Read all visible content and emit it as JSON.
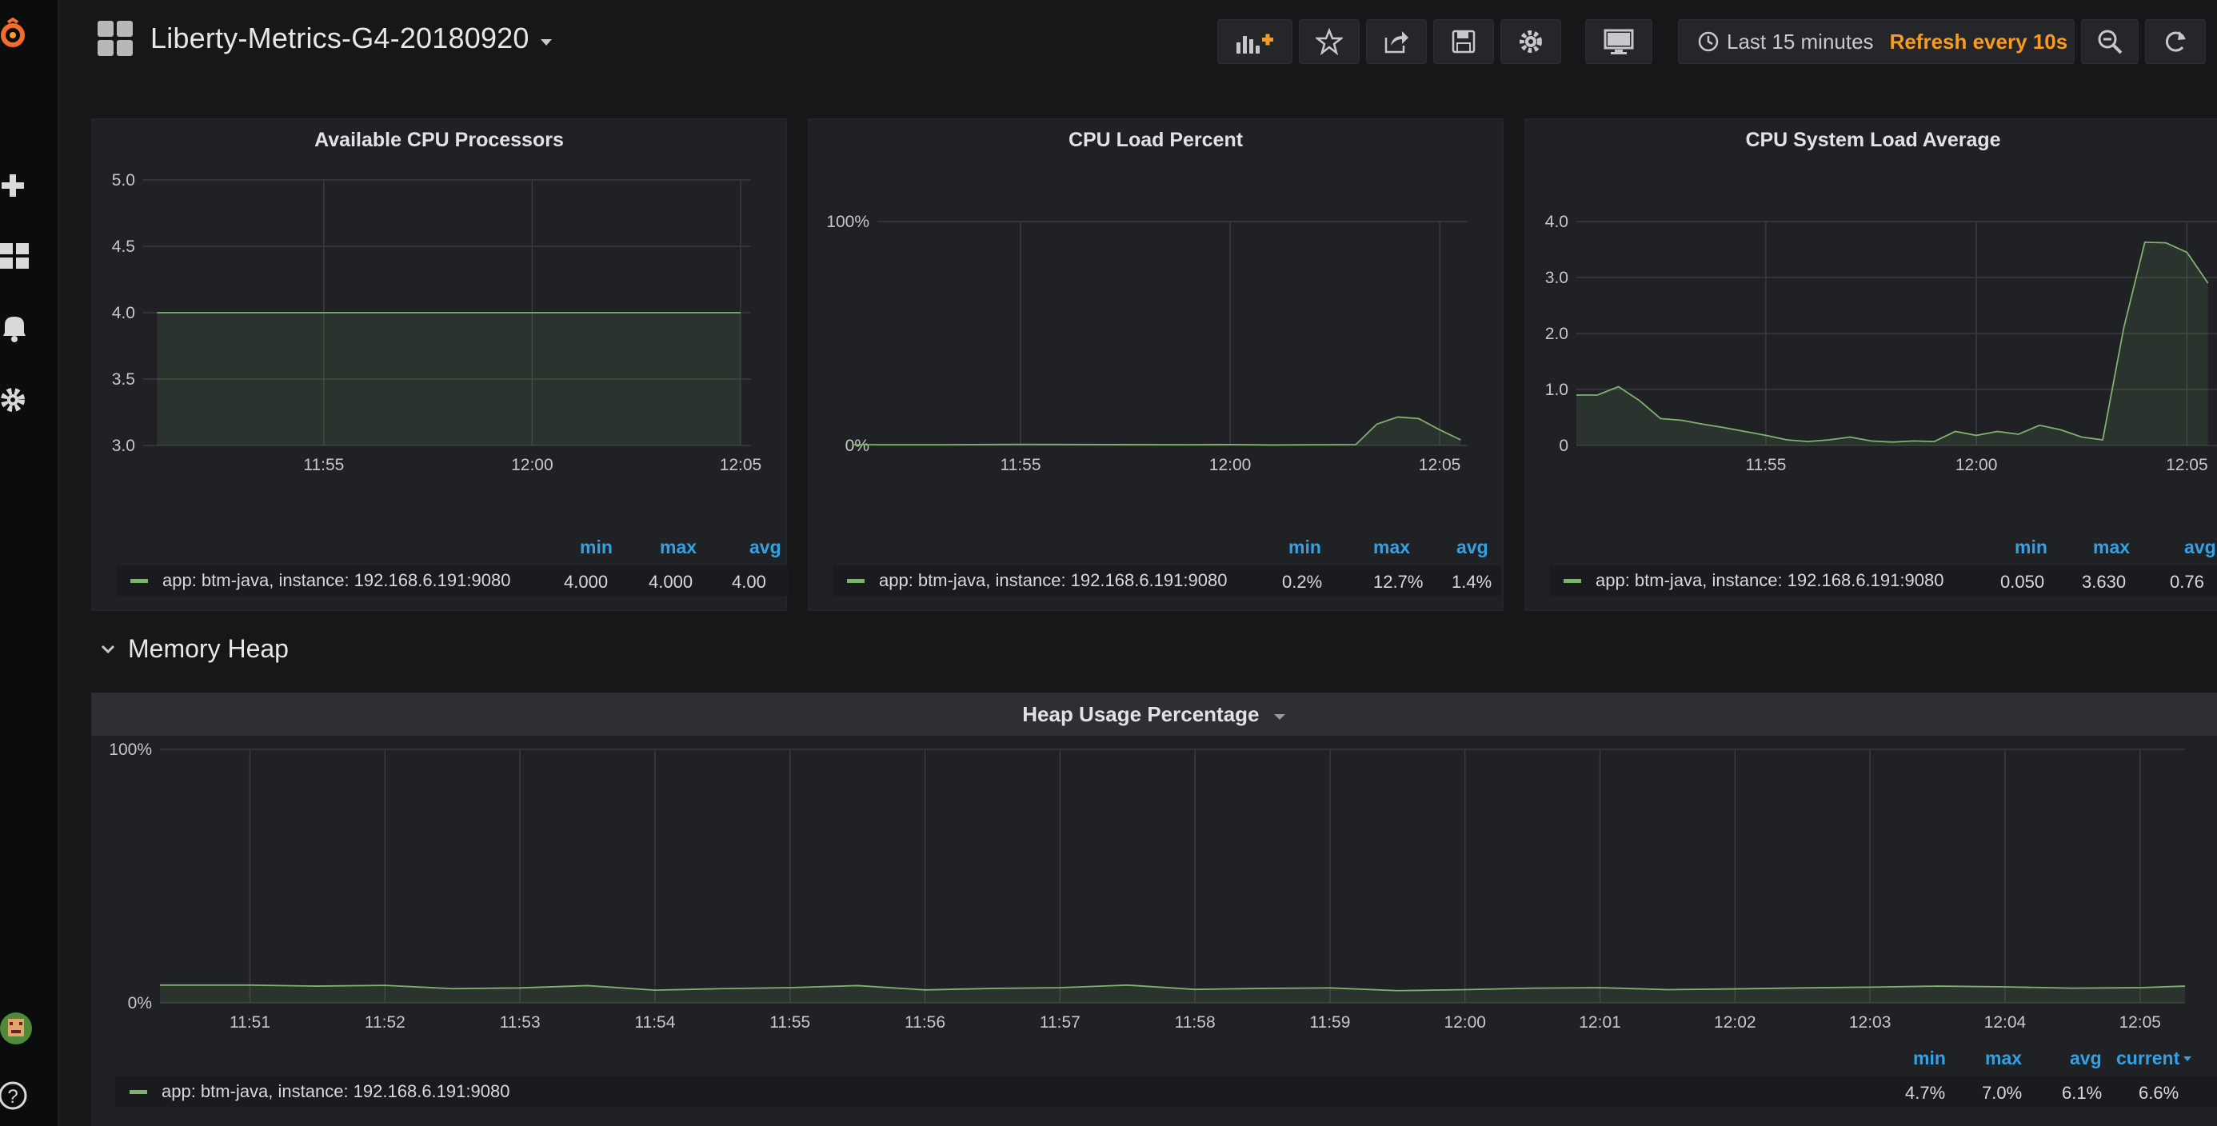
{
  "dashboard": {
    "title": "Liberty-Metrics-G4-20180920"
  },
  "toolbar": {
    "time_range": "Last 15 minutes",
    "refresh": "Refresh every 10s"
  },
  "colors": {
    "series": "#7eb26d",
    "accent": "#33a2e5",
    "refresh": "#f99b1f",
    "panel_bg": "#202125"
  },
  "icons": [
    "grafana-logo-icon",
    "plus-icon",
    "dashboards-icon",
    "bell-icon",
    "gear-icon",
    "help-icon",
    "add-panel-icon",
    "star-icon",
    "share-icon",
    "save-icon",
    "settings-icon",
    "tv-icon",
    "clock-icon",
    "zoom-out-icon",
    "refresh-icon"
  ],
  "panels": {
    "cpu_proc": {
      "title": "Available CPU Processors",
      "legend_headers": {
        "min": "min",
        "max": "max",
        "avg": "avg"
      },
      "legend": {
        "name": "app: btm-java, instance: 192.168.6.191:9080",
        "min": "4.000",
        "max": "4.000",
        "avg": "4.00"
      },
      "y_ticks": [
        "5.0",
        "4.5",
        "4.0",
        "3.5",
        "3.0"
      ],
      "x_ticks": [
        "11:55",
        "12:00",
        "12:05"
      ]
    },
    "cpu_load": {
      "title": "CPU Load Percent",
      "legend_headers": {
        "min": "min",
        "max": "max",
        "avg": "avg"
      },
      "legend": {
        "name": "app: btm-java, instance: 192.168.6.191:9080",
        "min": "0.2%",
        "max": "12.7%",
        "avg": "1.4%"
      },
      "y_ticks": [
        "100%",
        "0%"
      ],
      "x_ticks": [
        "11:55",
        "12:00",
        "12:05"
      ]
    },
    "cpu_sys": {
      "title": "CPU System Load Average",
      "legend_headers": {
        "min": "min",
        "max": "max",
        "avg": "avg"
      },
      "legend": {
        "name": "app: btm-java, instance: 192.168.6.191:9080",
        "min": "0.050",
        "max": "3.630",
        "avg": "0.76"
      },
      "y_ticks": [
        "4.0",
        "3.0",
        "2.0",
        "1.0",
        "0"
      ],
      "x_ticks": [
        "11:55",
        "12:00",
        "12:05"
      ]
    },
    "heap": {
      "row_title": "Memory Heap",
      "title": "Heap Usage Percentage",
      "legend_headers": {
        "min": "min",
        "max": "max",
        "avg": "avg",
        "current": "current"
      },
      "legend": {
        "name": "app: btm-java, instance: 192.168.6.191:9080",
        "min": "4.7%",
        "max": "7.0%",
        "avg": "6.1%",
        "current": "6.6%"
      },
      "y_ticks": [
        "100%",
        "0%"
      ],
      "x_ticks": [
        "11:51",
        "11:52",
        "11:53",
        "11:54",
        "11:55",
        "11:56",
        "11:57",
        "11:58",
        "11:59",
        "12:00",
        "12:01",
        "12:02",
        "12:03",
        "12:04",
        "12:05"
      ]
    }
  },
  "chart_data": [
    {
      "type": "area",
      "title": "Available CPU Processors",
      "ylim": [
        3.0,
        5.0
      ],
      "x_ticks": [
        "11:55",
        "12:00",
        "12:05"
      ],
      "series": [
        {
          "name": "app: btm-java, instance: 192.168.6.191:9080",
          "x": [
            "11:51",
            "12:05"
          ],
          "values": [
            4.0,
            4.0
          ]
        }
      ]
    },
    {
      "type": "area",
      "title": "CPU Load Percent",
      "ylim": [
        0,
        100
      ],
      "x_ticks": [
        "11:55",
        "12:00",
        "12:05"
      ],
      "series": [
        {
          "name": "app: btm-java, instance: 192.168.6.191:9080",
          "x": [
            "11:51",
            "11:53",
            "11:55",
            "11:57",
            "11:59",
            "12:00",
            "12:01",
            "12:02",
            "12:03",
            "12:03:30",
            "12:04",
            "12:04:30",
            "12:05",
            "12:05:30"
          ],
          "values": [
            0.3,
            0.3,
            0.5,
            0.4,
            0.3,
            0.4,
            0.2,
            0.3,
            0.4,
            9.5,
            12.7,
            12.0,
            7.0,
            2.5
          ]
        }
      ]
    },
    {
      "type": "area",
      "title": "CPU System Load Average",
      "ylim": [
        0,
        4.0
      ],
      "x_ticks": [
        "11:55",
        "12:00",
        "12:05"
      ],
      "series": [
        {
          "name": "app: btm-java, instance: 192.168.6.191:9080",
          "x": [
            "11:50:30",
            "11:51",
            "11:51:30",
            "11:52",
            "11:52:30",
            "11:53",
            "11:53:30",
            "11:54",
            "11:54:30",
            "11:55",
            "11:55:30",
            "11:56",
            "11:56:30",
            "11:57",
            "11:57:30",
            "11:58",
            "11:58:30",
            "11:59",
            "11:59:30",
            "12:00",
            "12:00:30",
            "12:01",
            "12:01:30",
            "12:02",
            "12:02:30",
            "12:03",
            "12:03:30",
            "12:04",
            "12:04:30",
            "12:05",
            "12:05:30"
          ],
          "values": [
            0.9,
            0.9,
            1.05,
            0.8,
            0.48,
            0.45,
            0.38,
            0.32,
            0.25,
            0.18,
            0.1,
            0.07,
            0.1,
            0.15,
            0.08,
            0.06,
            0.08,
            0.07,
            0.25,
            0.18,
            0.25,
            0.2,
            0.36,
            0.28,
            0.15,
            0.1,
            2.1,
            3.63,
            3.62,
            3.45,
            2.9
          ]
        }
      ]
    },
    {
      "type": "area",
      "title": "Heap Usage Percentage",
      "ylim": [
        0,
        100
      ],
      "x_ticks": [
        "11:51",
        "11:52",
        "11:53",
        "11:54",
        "11:55",
        "11:56",
        "11:57",
        "11:58",
        "11:59",
        "12:00",
        "12:01",
        "12:02",
        "12:03",
        "12:04",
        "12:05"
      ],
      "series": [
        {
          "name": "app: btm-java, instance: 192.168.6.191:9080",
          "x": [
            "11:50:20",
            "11:51",
            "11:51:30",
            "11:52",
            "11:52:30",
            "11:53",
            "11:53:30",
            "11:54",
            "11:54:30",
            "11:55",
            "11:55:30",
            "11:56",
            "11:56:30",
            "11:57",
            "11:57:30",
            "11:58",
            "11:58:30",
            "11:59",
            "11:59:30",
            "12:00",
            "12:00:30",
            "12:01",
            "12:01:30",
            "12:02",
            "12:02:30",
            "12:03",
            "12:03:30",
            "12:04",
            "12:04:30",
            "12:05",
            "12:05:20"
          ],
          "values": [
            7.0,
            7.0,
            6.6,
            6.9,
            5.6,
            5.9,
            6.8,
            5.0,
            5.6,
            6.0,
            6.8,
            5.1,
            5.7,
            6.0,
            7.0,
            5.3,
            5.7,
            5.9,
            4.8,
            5.2,
            5.8,
            6.0,
            5.2,
            5.5,
            5.9,
            6.2,
            6.6,
            6.3,
            5.8,
            6.0,
            6.6
          ]
        }
      ]
    }
  ]
}
